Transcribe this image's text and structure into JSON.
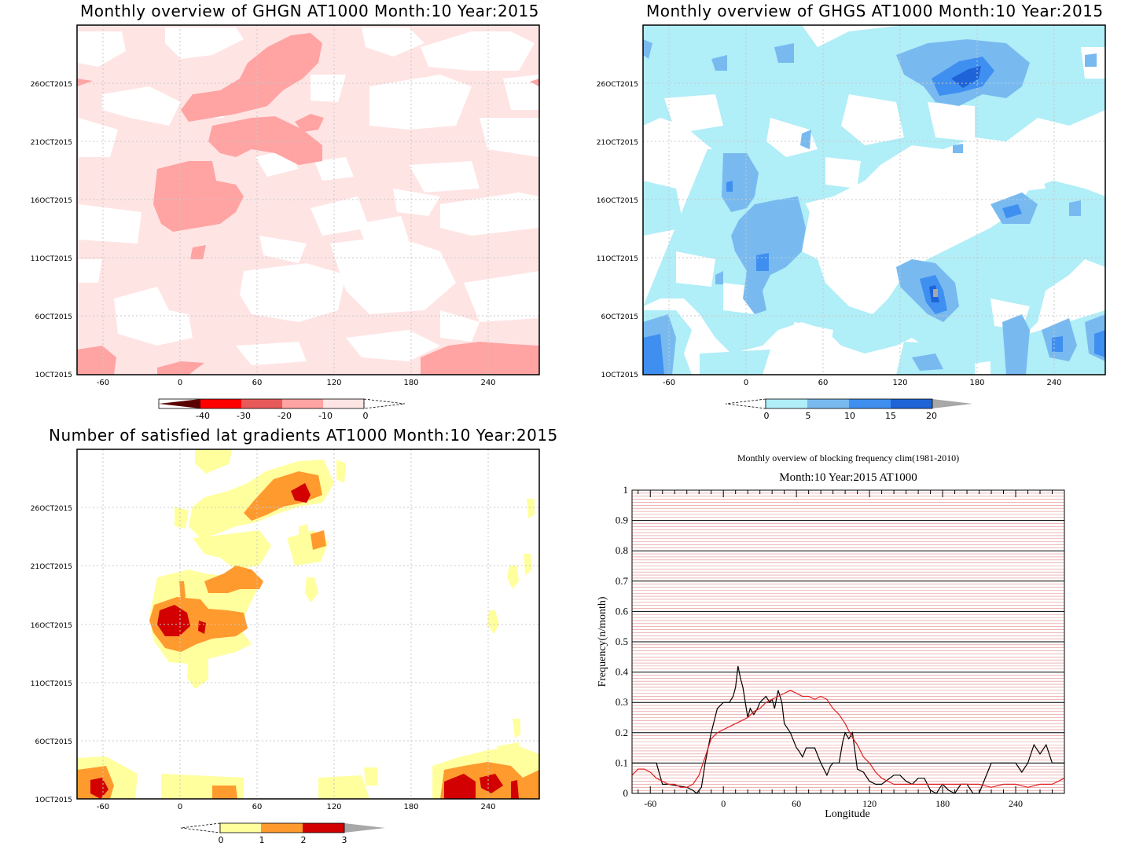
{
  "chart_data": [
    {
      "type": "heatmap",
      "title": "Monthly overview of GHGN AT1000 Month:10 Year:2015",
      "x_ticks": [
        "-60",
        "0",
        "60",
        "120",
        "180",
        "240"
      ],
      "y_ticks": [
        "1OCT2015",
        "6OCT2015",
        "11OCT2015",
        "16OCT2015",
        "21OCT2015",
        "26OCT2015"
      ],
      "colorbar_labels": [
        "-40",
        "-30",
        "-20",
        "-10",
        "0"
      ],
      "colors": [
        "#5a0000",
        "#ff0000",
        "#e85a5a",
        "#ffa3a3",
        "#ffe4e4"
      ]
    },
    {
      "type": "heatmap",
      "title": "Monthly overview of GHGS AT1000 Month:10 Year:2015",
      "x_ticks": [
        "-60",
        "0",
        "60",
        "120",
        "180",
        "240"
      ],
      "y_ticks": [
        "1OCT2015",
        "6OCT2015",
        "11OCT2015",
        "16OCT2015",
        "21OCT2015",
        "26OCT2015"
      ],
      "colorbar_labels": [
        "0",
        "5",
        "10",
        "15",
        "20"
      ],
      "colors": [
        "#b0eef8",
        "#78baf0",
        "#3f8ff0",
        "#1e64d8",
        "#a8a8a8"
      ]
    },
    {
      "type": "heatmap",
      "title": "Number of satisfied lat gradients AT1000 Month:10 Year:2015",
      "x_ticks": [
        "-60",
        "0",
        "60",
        "120",
        "180",
        "240"
      ],
      "y_ticks": [
        "1OCT2015",
        "6OCT2015",
        "11OCT2015",
        "16OCT2015",
        "21OCT2015",
        "26OCT2015"
      ],
      "colorbar_labels": [
        "0",
        "1",
        "2",
        "3"
      ],
      "colors": [
        "#ffff9e",
        "#ff9a2e",
        "#d20000",
        "#a8a8a8"
      ]
    },
    {
      "type": "line",
      "title": "Monthly overview of blocking frequency clim(1981-2010)",
      "subtitle": "Month:10 Year:2015  AT1000",
      "xlabel": "Longitude",
      "ylabel": "Frequency(n/month)",
      "xlim": [
        -75,
        280
      ],
      "ylim": [
        0,
        1
      ],
      "x_ticks": [
        "-60",
        "0",
        "60",
        "120",
        "180",
        "240"
      ],
      "y_ticks": [
        "0",
        "0.1",
        "0.2",
        "0.3",
        "0.4",
        "0.5",
        "0.6",
        "0.7",
        "0.8",
        "0.9",
        "1"
      ],
      "series": [
        {
          "color": "#000000",
          "x": [
            -75,
            -55,
            -50,
            -45,
            -30,
            -25,
            -22,
            -18,
            -15,
            -10,
            -5,
            0,
            5,
            8,
            10,
            12,
            14,
            16,
            18,
            20,
            22,
            25,
            28,
            30,
            35,
            38,
            40,
            42,
            45,
            48,
            50,
            55,
            60,
            62,
            65,
            68,
            70,
            75,
            80,
            85,
            88,
            90,
            95,
            98,
            100,
            103,
            106,
            110,
            115,
            120,
            125,
            130,
            140,
            145,
            150,
            155,
            160,
            165,
            170,
            175,
            178,
            180,
            185,
            190,
            195,
            200,
            205,
            210,
            220,
            230,
            240,
            245,
            250,
            255,
            260,
            265,
            270,
            275,
            280
          ],
          "y": [
            0.1,
            0.1,
            0.03,
            0.03,
            0.02,
            0.01,
            0,
            0.02,
            0.1,
            0.2,
            0.28,
            0.3,
            0.3,
            0.32,
            0.35,
            0.42,
            0.38,
            0.35,
            0.3,
            0.25,
            0.28,
            0.26,
            0.28,
            0.3,
            0.32,
            0.3,
            0.31,
            0.28,
            0.34,
            0.3,
            0.23,
            0.2,
            0.15,
            0.14,
            0.12,
            0.15,
            0.15,
            0.15,
            0.1,
            0.06,
            0.09,
            0.1,
            0.1,
            0.17,
            0.2,
            0.18,
            0.2,
            0.08,
            0.07,
            0.04,
            0.03,
            0.03,
            0.06,
            0.06,
            0.04,
            0.03,
            0.05,
            0.05,
            0.01,
            0,
            0.02,
            0.03,
            0.01,
            0,
            0.03,
            0.03,
            0,
            0,
            0.1,
            0.1,
            0.1,
            0.07,
            0.1,
            0.16,
            0.13,
            0.16,
            0.1,
            0.1,
            0.1
          ]
        },
        {
          "color": "#e02020",
          "x": [
            -75,
            -70,
            -65,
            -60,
            -55,
            -50,
            -45,
            -40,
            -35,
            -30,
            -25,
            -20,
            -15,
            -10,
            -5,
            0,
            5,
            10,
            15,
            20,
            25,
            30,
            35,
            40,
            45,
            50,
            55,
            60,
            65,
            70,
            75,
            80,
            85,
            90,
            95,
            100,
            105,
            110,
            115,
            120,
            125,
            130,
            135,
            140,
            150,
            160,
            170,
            180,
            190,
            200,
            210,
            220,
            230,
            240,
            250,
            260,
            270,
            280
          ],
          "y": [
            0.06,
            0.08,
            0.08,
            0.07,
            0.05,
            0.04,
            0.03,
            0.03,
            0.02,
            0.02,
            0.03,
            0.06,
            0.12,
            0.18,
            0.2,
            0.21,
            0.22,
            0.23,
            0.24,
            0.25,
            0.27,
            0.28,
            0.3,
            0.31,
            0.32,
            0.33,
            0.34,
            0.33,
            0.32,
            0.32,
            0.31,
            0.32,
            0.31,
            0.28,
            0.26,
            0.23,
            0.19,
            0.16,
            0.12,
            0.1,
            0.07,
            0.05,
            0.04,
            0.03,
            0.03,
            0.03,
            0.03,
            0.03,
            0.03,
            0.03,
            0.03,
            0.02,
            0.03,
            0.03,
            0.02,
            0.03,
            0.03,
            0.05
          ]
        }
      ]
    }
  ],
  "colors": {
    "red_l1": "#ffe4e4",
    "red_l2": "#ffa3a3",
    "blue_l1": "#b0eef8",
    "blue_l2": "#78baf0",
    "blue_l3": "#3f8ff0",
    "blue_l4": "#1e64d8",
    "yellow": "#ffff9e",
    "orange": "#ff9a2e",
    "darkred": "#d20000",
    "gray": "#a8a8a8"
  }
}
